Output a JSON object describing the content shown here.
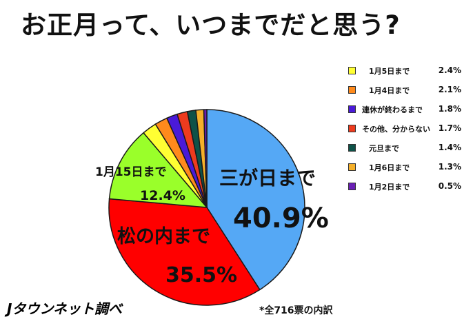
{
  "title": "お正月って、いつまでだと思う?",
  "footnote": "*全716票の内訳",
  "brand": "Jタウンネット調べ",
  "chart_data": {
    "type": "pie",
    "slices": [
      {
        "label": "三が日まで",
        "value": 40.9,
        "value_text": "40.9%",
        "color": "#55a8f5"
      },
      {
        "label": "松の内まで",
        "value": 35.5,
        "value_text": "35.5%",
        "color": "#ff0000"
      },
      {
        "label": "1月15日まで",
        "value": 12.4,
        "value_text": "12.4%",
        "color": "#9aff2a"
      },
      {
        "label": "1月5日まで",
        "value": 2.4,
        "value_text": "2.4%",
        "color": "#ffff33"
      },
      {
        "label": "1月4日まで",
        "value": 2.1,
        "value_text": "2.1%",
        "color": "#ff8a1c"
      },
      {
        "label": "連休が終わるまで",
        "value": 1.8,
        "value_text": "1.8%",
        "color": "#4a1ad8"
      },
      {
        "label": "その他、分からない",
        "value": 1.7,
        "value_text": "1.7%",
        "color": "#ee3b1e"
      },
      {
        "label": "元旦まで",
        "value": 1.4,
        "value_text": "1.4%",
        "color": "#0f5248"
      },
      {
        "label": "1月6日まで",
        "value": 1.3,
        "value_text": "1.3%",
        "color": "#f5b02a"
      },
      {
        "label": "1月2日まで",
        "value": 0.5,
        "value_text": "0.5%",
        "color": "#6a1fb5"
      }
    ],
    "legend_order": [
      3,
      4,
      5,
      6,
      7,
      8,
      9
    ],
    "legend_position": "right"
  }
}
